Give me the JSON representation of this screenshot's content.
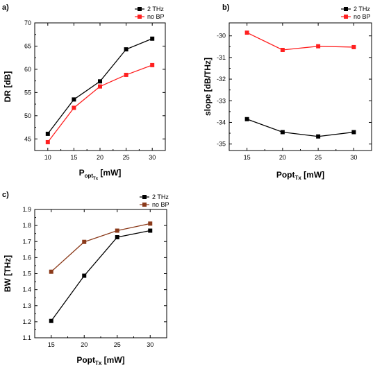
{
  "chart_data": [
    {
      "type": "line",
      "panel_label": "a)",
      "x": [
        10,
        15,
        20,
        25,
        30
      ],
      "xticks": [
        "10",
        "15",
        "20",
        "25",
        "30"
      ],
      "xlim": [
        7.5,
        32.5
      ],
      "yticks": [
        "45",
        "50",
        "55",
        "60",
        "65",
        "70"
      ],
      "ylim": [
        42.5,
        70
      ],
      "ylabel": "DR [dB]",
      "xlabel": {
        "main": "P",
        "sub": "opt",
        "subsub": "Tx",
        "unit": " [mW]"
      },
      "legend": "top-right",
      "series": [
        {
          "name": "2 THz",
          "color": "#000000",
          "values": [
            46.1,
            53.5,
            57.4,
            64.3,
            66.6
          ]
        },
        {
          "name": "no BP",
          "color": "#ff2020",
          "values": [
            44.3,
            51.7,
            56.3,
            58.8,
            60.9
          ]
        }
      ]
    },
    {
      "type": "line",
      "panel_label": "b)",
      "x": [
        15,
        20,
        25,
        30
      ],
      "xticks": [
        "15",
        "20",
        "25",
        "30"
      ],
      "xlim": [
        12.5,
        32.5
      ],
      "yticks": [
        "-35",
        "-34",
        "-33",
        "-32",
        "-31",
        "-30"
      ],
      "ylim": [
        -35.3,
        -29.4
      ],
      "ylabel": "slope [dB/THz]",
      "xlabel": {
        "main": "Popt",
        "sub": "Tx",
        "unit": " [mW]"
      },
      "legend": "top-right",
      "series": [
        {
          "name": "2 THz",
          "color": "#000000",
          "values": [
            -33.85,
            -34.45,
            -34.65,
            -34.45
          ]
        },
        {
          "name": "no BP",
          "color": "#ff2020",
          "values": [
            -29.85,
            -30.65,
            -30.48,
            -30.52
          ]
        }
      ]
    },
    {
      "type": "line",
      "panel_label": "c)",
      "x": [
        15,
        20,
        25,
        30
      ],
      "xticks": [
        "15",
        "20",
        "25",
        "30"
      ],
      "xlim": [
        12.5,
        32.5
      ],
      "yticks": [
        "1.1",
        "1.2",
        "1.3",
        "1.4",
        "1.5",
        "1.6",
        "1.7",
        "1.8",
        "1.9"
      ],
      "ylim": [
        1.1,
        1.9
      ],
      "ylabel": "BW [THz]",
      "xlabel": {
        "main": "Popt",
        "sub": "Tx",
        "unit": " [mW]"
      },
      "legend": "top-left",
      "series": [
        {
          "name": "2 THz",
          "color": "#000000",
          "values": [
            1.205,
            1.487,
            1.727,
            1.768
          ]
        },
        {
          "name": "no BP",
          "color": "#8b3a1a",
          "values": [
            1.512,
            1.698,
            1.768,
            1.812
          ]
        }
      ]
    }
  ]
}
